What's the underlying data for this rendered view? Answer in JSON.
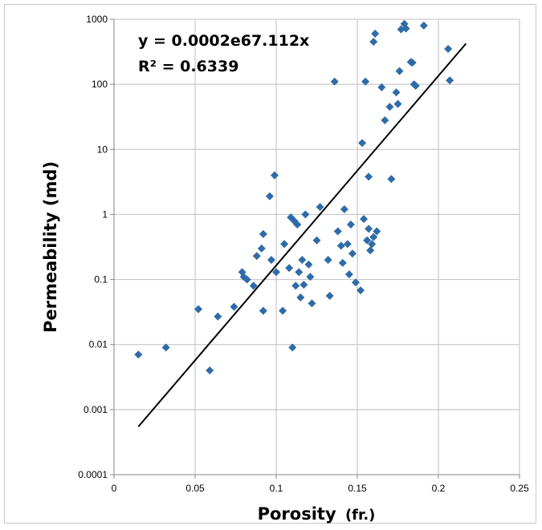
{
  "chart_data": {
    "type": "scatter",
    "title": "",
    "xlabel_main": "Porosity",
    "xlabel_unit": "(fr.)",
    "ylabel": "Permeability (md)",
    "xlim": [
      0,
      0.25
    ],
    "ylim": [
      0.0001,
      1000
    ],
    "yscale": "log",
    "grid": true,
    "x_ticks": [
      "0",
      "0.05",
      "0.1",
      "0.15",
      "0.2",
      "0.25"
    ],
    "x_tick_values": [
      0,
      0.05,
      0.1,
      0.15,
      0.2,
      0.25
    ],
    "y_ticks": [
      "0.0001",
      "0.001",
      "0.01",
      "0.1",
      "1",
      "10",
      "100",
      "1000"
    ],
    "y_tick_values": [
      0.0001,
      0.001,
      0.01,
      0.1,
      1,
      10,
      100,
      1000
    ],
    "marker_color": "#2e6ba8",
    "trendline": {
      "color": "#000000",
      "a": 0.0002,
      "b": 67.112,
      "x_start": 0.015,
      "x_end": 0.217,
      "equation": "y = 0.0002e67.112x",
      "r_squared": "R² = 0.6339"
    },
    "points": [
      [
        0.015,
        0.007
      ],
      [
        0.032,
        0.009
      ],
      [
        0.052,
        0.035
      ],
      [
        0.059,
        0.004
      ],
      [
        0.064,
        0.027
      ],
      [
        0.074,
        0.038
      ],
      [
        0.079,
        0.13
      ],
      [
        0.08,
        0.11
      ],
      [
        0.082,
        0.1
      ],
      [
        0.086,
        0.08
      ],
      [
        0.088,
        0.23
      ],
      [
        0.091,
        0.3
      ],
      [
        0.092,
        0.5
      ],
      [
        0.092,
        0.033
      ],
      [
        0.096,
        1.9
      ],
      [
        0.097,
        0.2
      ],
      [
        0.099,
        4.0
      ],
      [
        0.1,
        0.13
      ],
      [
        0.104,
        0.033
      ],
      [
        0.105,
        0.35
      ],
      [
        0.108,
        0.15
      ],
      [
        0.109,
        0.9
      ],
      [
        0.11,
        0.009
      ],
      [
        0.111,
        0.8
      ],
      [
        0.112,
        0.08
      ],
      [
        0.113,
        0.7
      ],
      [
        0.114,
        0.13
      ],
      [
        0.115,
        0.053
      ],
      [
        0.116,
        0.2
      ],
      [
        0.117,
        0.083
      ],
      [
        0.118,
        1.0
      ],
      [
        0.12,
        0.17
      ],
      [
        0.121,
        0.11
      ],
      [
        0.122,
        0.043
      ],
      [
        0.125,
        0.4
      ],
      [
        0.127,
        1.3
      ],
      [
        0.132,
        0.2
      ],
      [
        0.133,
        0.056
      ],
      [
        0.136,
        110
      ],
      [
        0.138,
        0.55
      ],
      [
        0.14,
        0.33
      ],
      [
        0.141,
        0.18
      ],
      [
        0.142,
        1.2
      ],
      [
        0.144,
        0.35
      ],
      [
        0.145,
        0.12
      ],
      [
        0.146,
        0.7
      ],
      [
        0.147,
        0.25
      ],
      [
        0.149,
        0.09
      ],
      [
        0.152,
        0.068
      ],
      [
        0.153,
        12.5
      ],
      [
        0.154,
        0.85
      ],
      [
        0.155,
        110
      ],
      [
        0.156,
        0.4
      ],
      [
        0.157,
        3.8
      ],
      [
        0.157,
        0.6
      ],
      [
        0.158,
        0.28
      ],
      [
        0.159,
        0.35
      ],
      [
        0.16,
        0.45
      ],
      [
        0.16,
        450
      ],
      [
        0.161,
        600
      ],
      [
        0.162,
        0.55
      ],
      [
        0.165,
        90
      ],
      [
        0.167,
        28
      ],
      [
        0.17,
        45
      ],
      [
        0.171,
        3.5
      ],
      [
        0.174,
        75
      ],
      [
        0.175,
        50
      ],
      [
        0.176,
        160
      ],
      [
        0.177,
        700
      ],
      [
        0.179,
        850
      ],
      [
        0.18,
        720
      ],
      [
        0.183,
        220
      ],
      [
        0.184,
        215
      ],
      [
        0.185,
        100
      ],
      [
        0.186,
        95
      ],
      [
        0.191,
        800
      ],
      [
        0.206,
        350
      ],
      [
        0.207,
        115
      ]
    ]
  }
}
